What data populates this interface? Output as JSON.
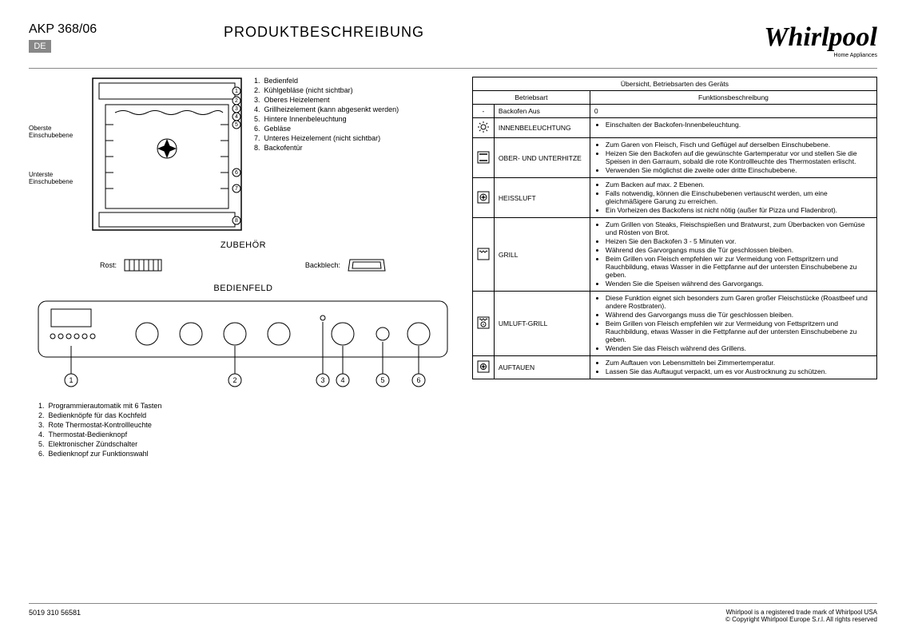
{
  "header": {
    "model": "AKP 368/06",
    "lang": "DE",
    "title": "PRODUKTBESCHREIBUNG",
    "logo": "Whirlpool",
    "logo_sub": "Home Appliances"
  },
  "oven_labels_left": {
    "top": "Oberste Einschubebene",
    "bottom": "Unterste Einschubebene"
  },
  "oven_parts": [
    "Bedienfeld",
    "Kühlgebläse (nicht sichtbar)",
    "Oberes Heizelement",
    "Grillheizelement (kann abgesenkt werden)",
    "Hintere Innenbeleuchtung",
    "Gebläse",
    "Unteres Heizelement (nicht sichtbar)",
    "Backofentür"
  ],
  "accessories_head": "ZUBEHÖR",
  "accessories": {
    "rost": "Rost:",
    "backblech": "Backblech:"
  },
  "panel_head": "BEDIENFELD",
  "panel_legend": [
    "Programmierautomatik mit 6 Tasten",
    "Bedienknöpfe für das Kochfeld",
    "Rote Thermostat-Kontrollleuchte",
    "Thermostat-Bedienknopf",
    "Elektronischer Zündschalter",
    "Bedienknopf zur Funktionswahl"
  ],
  "table": {
    "title": "Übersicht, Betriebsarten des Geräts",
    "col_mode": "Betriebsart",
    "col_desc": "Funktionsbeschreibung",
    "rows": [
      {
        "icon": "off",
        "name": "Backofen Aus",
        "bullets": [
          "0"
        ],
        "plain": true
      },
      {
        "icon": "light",
        "name": "INNENBELEUCHTUNG",
        "bullets": [
          "Einschalten der Backofen-Innenbeleuchtung."
        ]
      },
      {
        "icon": "topbottom",
        "name": "OBER- UND UNTERHITZE",
        "bullets": [
          "Zum Garen von Fleisch, Fisch und Geflügel auf derselben Einschubebene.",
          "Heizen Sie den Backofen auf die gewünschte Gartemperatur vor und stellen Sie die Speisen in den Garraum, sobald die rote Kontrollleuchte des Thermostaten erlischt.",
          "Verwenden Sie möglichst die zweite oder dritte Einschubebene."
        ]
      },
      {
        "icon": "fan",
        "name": "HEISSLUFT",
        "bullets": [
          "Zum Backen auf max. 2 Ebenen.",
          "Falls notwendig, können die Einschubebenen vertauscht werden, um eine gleichmäßigere Garung zu erreichen.",
          "Ein Vorheizen des Backofens ist nicht nötig (außer für Pizza und Fladenbrot)."
        ]
      },
      {
        "icon": "grill",
        "name": "GRILL",
        "bullets": [
          "Zum Grillen von Steaks, Fleischspießen und Bratwurst, zum Überbacken von Gemüse und Rösten von Brot.",
          "Heizen Sie den Backofen 3 - 5 Minuten vor.",
          "Während des Garvorgangs muss die Tür geschlossen bleiben.",
          "Beim Grillen von Fleisch empfehlen wir zur Vermeidung von Fettspritzern und Rauchbildung, etwas Wasser in die Fettpfanne auf der untersten Einschubebene zu geben.",
          "Wenden Sie die Speisen während des Garvorgangs."
        ]
      },
      {
        "icon": "fangrill",
        "name": "UMLUFT-GRILL",
        "bullets": [
          "Diese Funktion eignet sich besonders zum Garen großer Fleischstücke (Roastbeef und andere Rostbraten).",
          "Während des Garvorgangs muss die Tür geschlossen bleiben.",
          "Beim Grillen von Fleisch empfehlen wir zur Vermeidung von Fettspritzern und Rauchbildung, etwas Wasser in die Fettpfanne auf der untersten Einschubebene zu geben.",
          "Wenden Sie das Fleisch während des Grillens."
        ]
      },
      {
        "icon": "defrost",
        "name": "AUFTAUEN",
        "bullets": [
          "Zum Auftauen von Lebensmitteln bei Zimmertemperatur.",
          "Lassen Sie das Auftaugut verpackt, um es vor Austrocknung zu schützen."
        ]
      }
    ]
  },
  "footer": {
    "code": "5019 310 56581",
    "legal1": "Whirlpool is a registered trade mark of Whirlpool USA",
    "legal2": "© Copyright Whirlpool Europe S.r.l. All rights reserved"
  },
  "colors": {
    "border": "#000000",
    "rule": "#888888",
    "badge_bg": "#888888",
    "badge_fg": "#ffffff"
  }
}
